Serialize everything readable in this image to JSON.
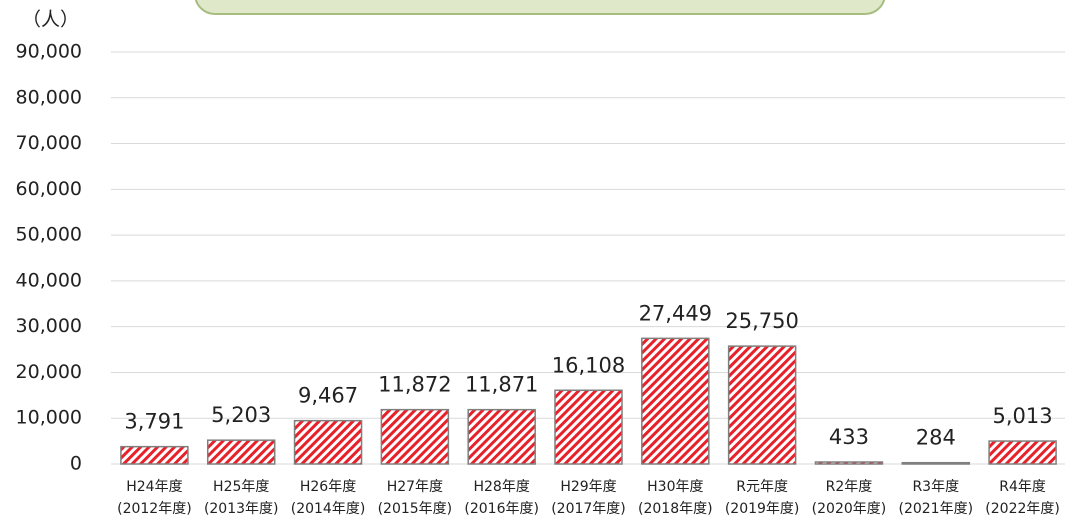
{
  "chart_data": {
    "type": "bar",
    "y_label": "（人）",
    "categories": [
      [
        "H24年度",
        "(2012年度)"
      ],
      [
        "H25年度",
        "(2013年度)"
      ],
      [
        "H26年度",
        "(2014年度)"
      ],
      [
        "H27年度",
        "(2015年度)"
      ],
      [
        "H28年度",
        "(2016年度)"
      ],
      [
        "H29年度",
        "(2017年度)"
      ],
      [
        "H30年度",
        "(2018年度)"
      ],
      [
        "R元年度",
        "(2019年度)"
      ],
      [
        "R2年度",
        "(2020年度)"
      ],
      [
        "R3年度",
        "(2021年度)"
      ],
      [
        "R4年度",
        "(2022年度)"
      ]
    ],
    "values": [
      3791,
      5203,
      9467,
      11872,
      11871,
      16108,
      27449,
      25750,
      433,
      284,
      5013
    ],
    "value_labels": [
      "3,791",
      "5,203",
      "9,467",
      "11,872",
      "11,871",
      "16,108",
      "27,449",
      "25,750",
      "433",
      "284",
      "5,013"
    ],
    "color": "#e8202a",
    "ylim": [
      0,
      90000
    ],
    "yticks": [
      0,
      {
        "value": 10000,
        "label": "10,000"
      },
      {
        "value": 20000,
        "label": "20,000"
      },
      {
        "value": 30000,
        "label": "30,000"
      },
      {
        "value": 40000,
        "label": "40,000"
      },
      {
        "value": 50000,
        "label": "50,000"
      },
      {
        "value": 60000,
        "label": "60,000"
      },
      {
        "value": 70000,
        "label": "70,000"
      },
      {
        "value": 80000,
        "label": "80,000"
      },
      {
        "value": 90000,
        "label": "90,000"
      }
    ],
    "grid": true
  }
}
